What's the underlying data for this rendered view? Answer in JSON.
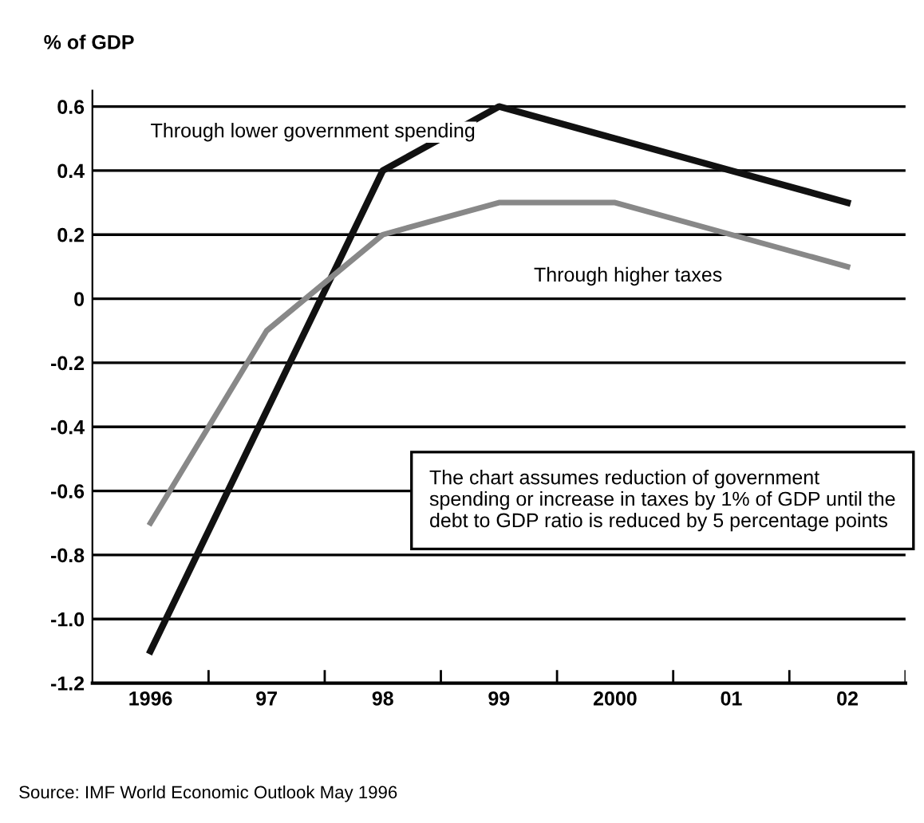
{
  "chart_data": {
    "type": "line",
    "ylabel": "% of GDP",
    "categories": [
      "1996",
      "97",
      "98",
      "99",
      "2000",
      "01",
      "02"
    ],
    "series": [
      {
        "name": "Through lower government spending",
        "color": "#111111",
        "values": [
          -1.1,
          -0.35,
          0.4,
          0.6,
          0.5,
          0.4,
          0.3
        ]
      },
      {
        "name": "Through higher taxes",
        "color": "#888888",
        "values": [
          -0.7,
          -0.1,
          0.2,
          0.3,
          0.3,
          0.2,
          0.1
        ]
      }
    ],
    "ylim": [
      -1.2,
      0.65
    ],
    "yticks": [
      0.6,
      0.4,
      0.2,
      0,
      -0.2,
      -0.4,
      -0.6,
      -0.8,
      {
        "value": -1.0,
        "label": "-1.0"
      },
      -1.2
    ],
    "grid": "y",
    "marker": "none",
    "line_style": "solid",
    "annotations": [
      "The chart assumes reduction of government spending or increase in taxes by 1% of GDP until the debt to GDP ratio is reduced by 5 percentage points",
      "Source: IMF World Economic Outlook May 1996"
    ]
  }
}
